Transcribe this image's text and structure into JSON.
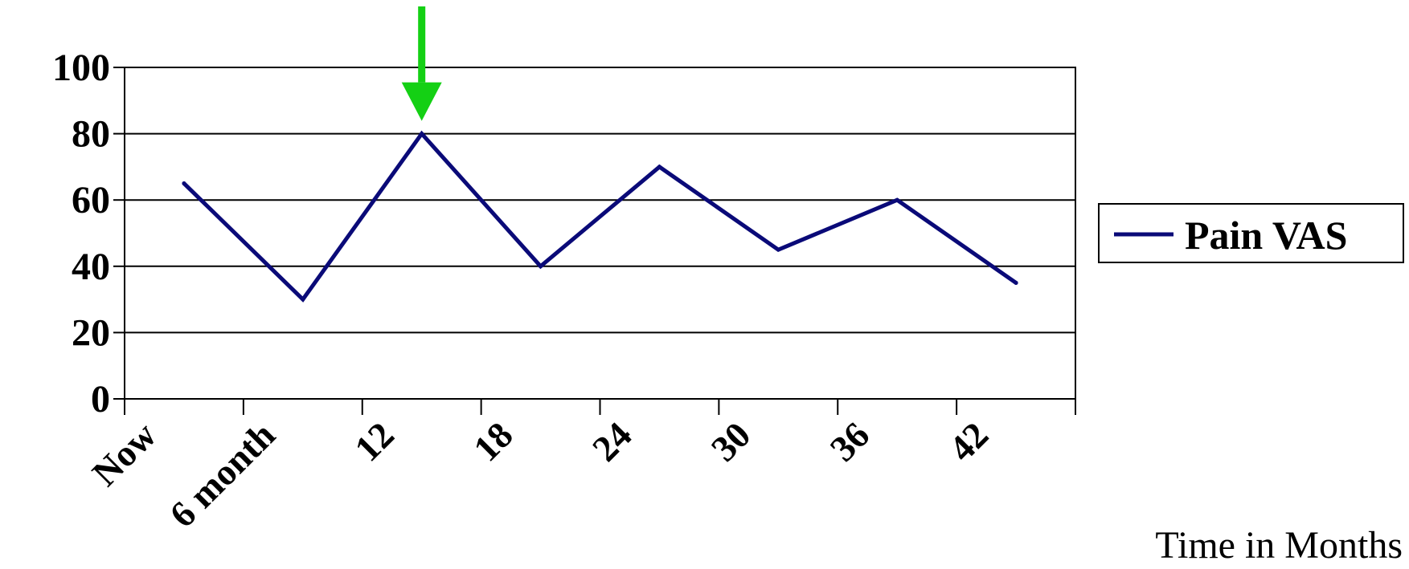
{
  "chart_data": {
    "type": "line",
    "categories": [
      "Now",
      "6 month",
      "12",
      "18",
      "24",
      "30",
      "36",
      "42"
    ],
    "x": [
      0.5,
      1.5,
      2.5,
      3.5,
      4.5,
      5.5,
      6.5,
      7.5
    ],
    "series": [
      {
        "name": "Pain VAS",
        "values": [
          65,
          30,
          80,
          40,
          70,
          45,
          60,
          35
        ],
        "color": "#0a0a78"
      }
    ],
    "ylim": [
      0,
      100
    ],
    "yticks": [
      0,
      20,
      40,
      60,
      80,
      100
    ],
    "xlim": [
      0,
      8
    ],
    "xlabel": "Time in Months",
    "grid": true,
    "legend_position": "right",
    "annotation": {
      "type": "arrow",
      "target_x": 2.5,
      "target_y": 80,
      "color": "#14d014"
    }
  }
}
